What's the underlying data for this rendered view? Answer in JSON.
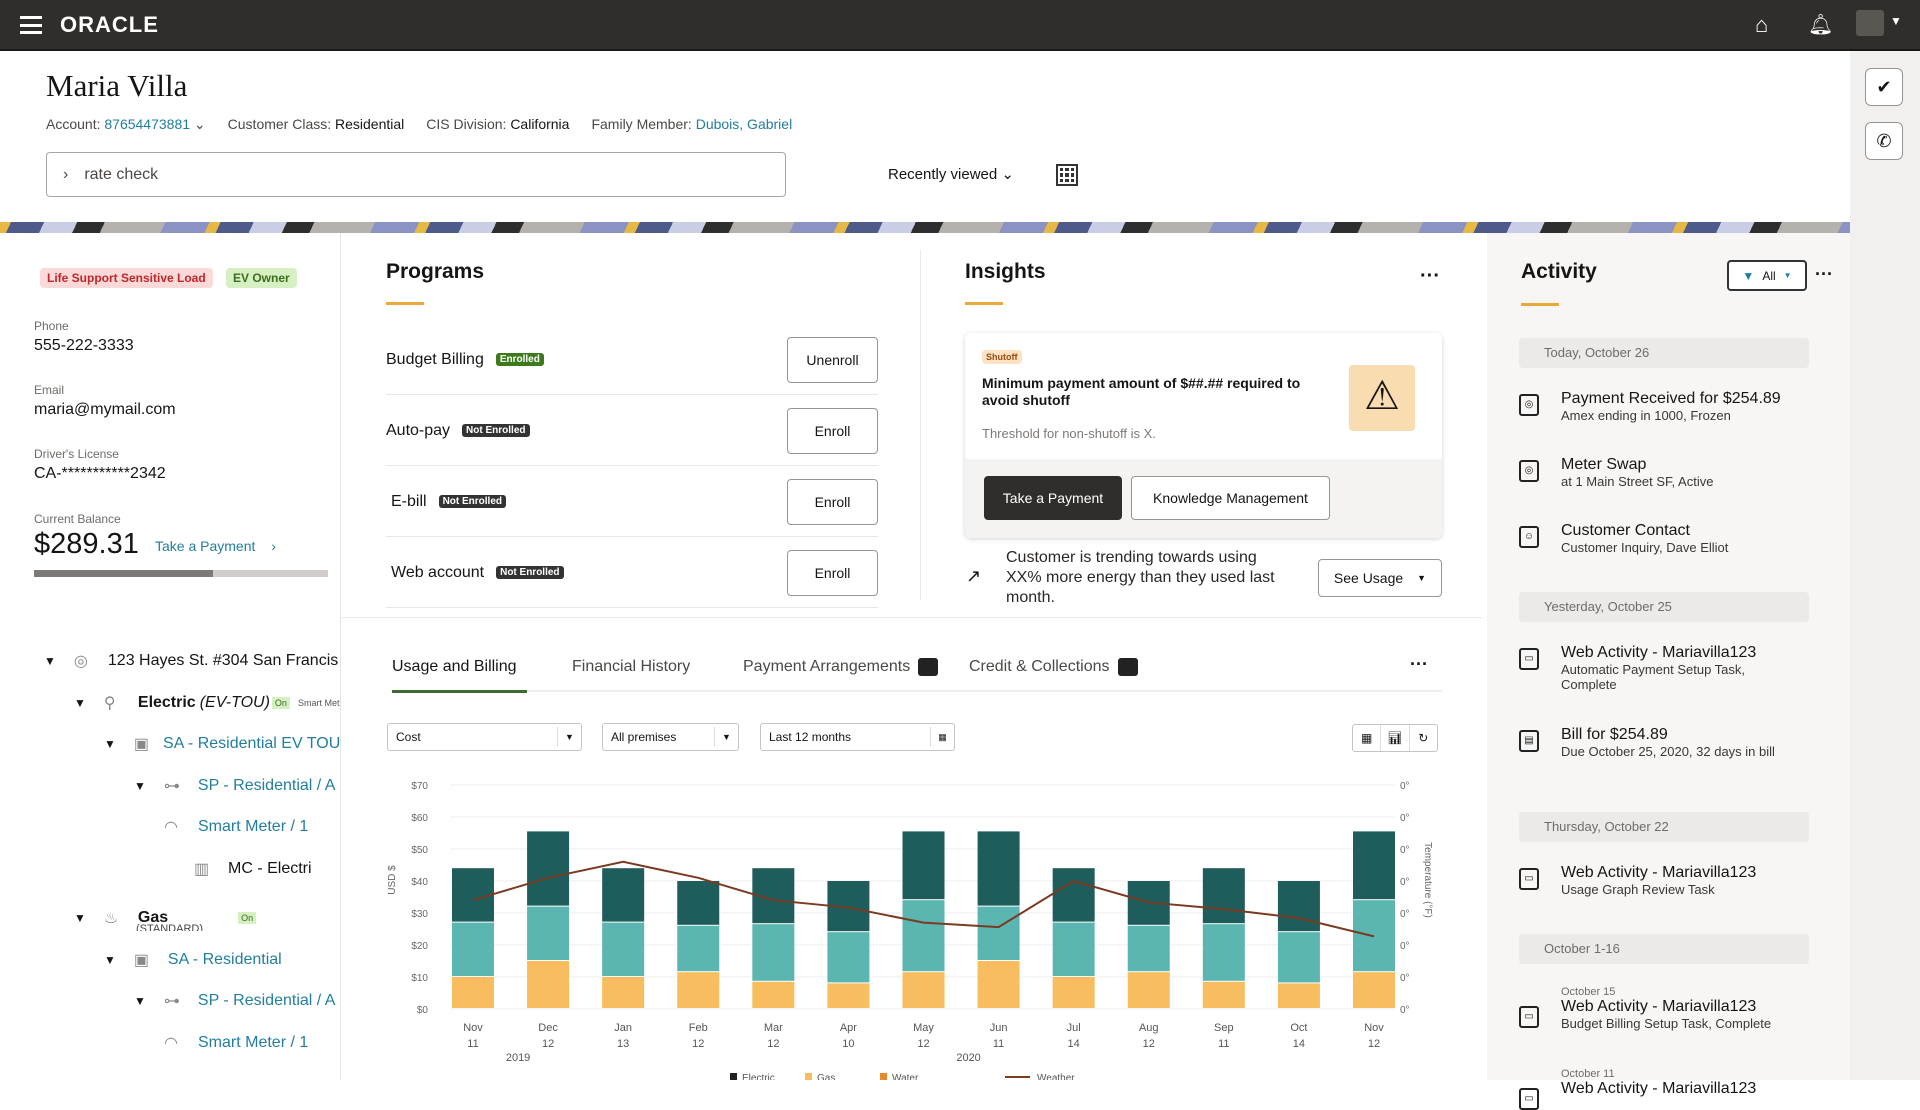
{
  "topbar": {
    "brand": "ORACLE",
    "icons": [
      "menu-icon",
      "home-icon",
      "bell-icon",
      "avatar-icon"
    ]
  },
  "rail": {
    "icons": [
      "check-circle-icon",
      "phone-icon"
    ]
  },
  "customer": {
    "name": "Maria Villa",
    "account_label": "Account:",
    "account": "87654473881",
    "class_label": "Customer Class:",
    "class": "Residential",
    "division_label": "CIS Division:",
    "division": "California",
    "family_label": "Family Member:",
    "family": "Dubois, Gabriel"
  },
  "search": {
    "value": "rate check",
    "recently_viewed": "Recently viewed"
  },
  "profile": {
    "badges": [
      {
        "label": "Life Support Sensitive Load",
        "color": "#c0262b",
        "bg": "#fadad8"
      },
      {
        "label": "EV Owner",
        "color": "#3c6e1c",
        "bg": "#d6f0c4"
      }
    ],
    "phone_label": "Phone",
    "phone": "555-222-3333",
    "email_label": "Email",
    "email": "maria@mymail.com",
    "license_label": "Driver's License",
    "license": "CA-***********2342",
    "balance_label": "Current Balance",
    "balance": "$289.31",
    "take_payment": "Take a Payment",
    "balance_progress": 0.61
  },
  "tree": [
    {
      "level": 0,
      "icon": "location-pin-icon",
      "label": "123 Hayes St. #304 San Francis",
      "style": "plain"
    },
    {
      "level": 1,
      "icon": "plug-icon",
      "label": "Electric",
      "sub": "(EV-TOU)",
      "badge": "On",
      "extra": "Smart Met",
      "style": "bold"
    },
    {
      "level": 2,
      "icon": "service-agreement-icon",
      "label": "SA - Residential EV TOU",
      "style": "link"
    },
    {
      "level": 3,
      "icon": "service-point-icon",
      "label": "SP - Residential / A",
      "style": "link"
    },
    {
      "level": 4,
      "icon": "meter-icon",
      "label": "Smart Meter / 1",
      "style": "link"
    },
    {
      "level": 5,
      "icon": "bar-chart-icon",
      "label": "MC - Electri",
      "style": "plain"
    },
    {
      "level": 1,
      "icon": "flame-icon",
      "label": "Gas",
      "sub": "(STANDARD)",
      "badge": "On",
      "style": "bold"
    },
    {
      "level": 2,
      "icon": "service-agreement-icon",
      "label": "SA - Residential",
      "style": "link"
    },
    {
      "level": 3,
      "icon": "service-point-icon",
      "label": "SP - Residential / A",
      "style": "link"
    },
    {
      "level": 4,
      "icon": "meter-icon",
      "label": "Smart Meter / 1",
      "style": "link"
    }
  ],
  "programs": {
    "title": "Programs",
    "items": [
      {
        "name": "Budget Billing",
        "status": "Enrolled",
        "status_color": "#3c7a1c",
        "action": "Unenroll"
      },
      {
        "name": "Auto-pay",
        "status": "Not Enrolled",
        "status_color": "#333",
        "action": "Enroll"
      },
      {
        "name": "E-bill",
        "status": "Not Enrolled",
        "status_color": "#333",
        "action": "Enroll"
      },
      {
        "name": "Web account",
        "status": "Not Enrolled",
        "status_color": "#333",
        "action": "Enroll"
      }
    ]
  },
  "insights": {
    "title": "Insights",
    "card": {
      "tag": "Shutoff",
      "message": "Minimum payment amount of $##.## required to avoid shutoff",
      "sub": "Threshold for non-shutoff is X.",
      "primary": "Take a Payment",
      "secondary": "Knowledge Management"
    },
    "trend": "Customer is trending towards using XX% more energy than they used last month.",
    "see_usage": "See Usage"
  },
  "activity": {
    "title": "Activity",
    "filter": "All",
    "groups": [
      {
        "date": "Today, October 26",
        "items": [
          {
            "icon": "payment-icon",
            "title": "Payment Received for $254.89",
            "sub": "Amex ending in 1000, Frozen"
          },
          {
            "icon": "meter-swap-icon",
            "title": "Meter Swap",
            "sub": "at 1 Main Street SF, Active"
          },
          {
            "icon": "contact-icon",
            "title": "Customer Contact",
            "sub": "Customer Inquiry, Dave Elliot"
          }
        ]
      },
      {
        "date": "Yesterday, October 25",
        "items": [
          {
            "icon": "web-activity-icon",
            "title": "Web Activity - Mariavilla123",
            "sub": "Automatic Payment Setup Task, Complete"
          },
          {
            "icon": "bill-icon",
            "title": "Bill for $254.89",
            "sub": "Due October 25, 2020, 32 days in bill"
          }
        ]
      },
      {
        "date": "Thursday, October 22",
        "items": [
          {
            "icon": "web-activity-icon",
            "title": "Web Activity - Mariavilla123",
            "sub": "Usage Graph Review Task"
          }
        ]
      },
      {
        "date": "October 1-16",
        "items": [
          {
            "icon": "web-activity-icon",
            "pre": "October 15",
            "title": "Web Activity - Mariavilla123",
            "sub": "Budget Billing Setup Task, Complete"
          },
          {
            "icon": "web-activity-icon",
            "pre": "October 11",
            "title": "Web Activity - Mariavilla123",
            "sub": ""
          }
        ]
      }
    ]
  },
  "tabs": [
    {
      "label": "Usage and Billing",
      "active": true
    },
    {
      "label": "Financial History"
    },
    {
      "label": "Payment Arrangements",
      "count_icon": true
    },
    {
      "label": "Credit & Collections",
      "count_icon": true
    }
  ],
  "filters": {
    "measure": "Cost",
    "premises": "All premises",
    "range": "Last 12 months"
  },
  "colors": {
    "accent": "#e8a93a",
    "link": "#227e9e",
    "electric": "#1f5c5c",
    "middle": "#5bb5b0",
    "gas": "#f7bd5e",
    "weather": "#7a3b22"
  },
  "chart_data": {
    "type": "bar",
    "stacked": true,
    "categories": [
      "Nov 11",
      "Dec 12",
      "Jan 13",
      "Feb 12",
      "Mar 12",
      "Apr 10",
      "May 12",
      "Jun 11",
      "Jul 14",
      "Aug 12",
      "Sep 11",
      "Oct 14",
      "Nov 12"
    ],
    "year_labels": [
      {
        "label": "2019",
        "at": "Dec 12"
      },
      {
        "label": "2020",
        "at": "Jun 11"
      }
    ],
    "series": [
      {
        "name": "Gas",
        "color": "#f7bd5e",
        "values": [
          10,
          15,
          10,
          11.5,
          8.5,
          8,
          11.5,
          15,
          10,
          11.5,
          8.5,
          8,
          11.5
        ]
      },
      {
        "name": "Water",
        "color": "#5bb5b0",
        "values": [
          17,
          17,
          17,
          14.5,
          18,
          16,
          22.5,
          17,
          17,
          14.5,
          18,
          16,
          22.5
        ]
      },
      {
        "name": "Electric",
        "color": "#1f5c5c",
        "values": [
          17,
          23.5,
          17,
          14,
          17.5,
          16,
          21.5,
          23.5,
          17,
          14,
          17.5,
          16,
          21.5
        ]
      }
    ],
    "line": {
      "name": "Weather",
      "color": "#7a3b22",
      "values": [
        34,
        41,
        46,
        41,
        34,
        31.7,
        27,
        25.6,
        40,
        33.3,
        31.2,
        28.4,
        22.7
      ]
    },
    "ylabel": "USD $",
    "y2label": "Temperature (°F)",
    "ylim": [
      0,
      70
    ],
    "yticks": [
      "$0",
      "$10",
      "$20",
      "$30",
      "$40",
      "$50",
      "$60",
      "$70"
    ],
    "y2ticks": [
      "0°",
      "0°",
      "0°",
      "0°",
      "0°",
      "0°",
      "0°",
      "0°"
    ],
    "legend": [
      "Electric",
      "Gas",
      "Water",
      "Weather"
    ],
    "legend_position": "bottom",
    "grid": true
  }
}
